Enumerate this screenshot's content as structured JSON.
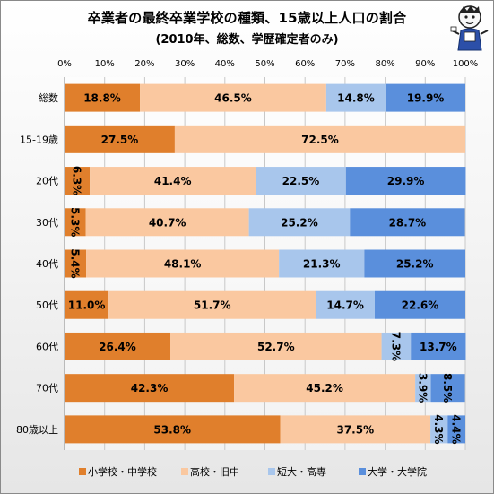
{
  "chart_data": {
    "type": "bar",
    "orientation": "horizontal",
    "stacked": "percent",
    "title": "卒業者の最終卒業学校の種類、15歳以上人口の割合",
    "subtitle": "(2010年、総数、学歴確定者のみ)",
    "categories": [
      "総数",
      "15-19歳",
      "20代",
      "30代",
      "40代",
      "50代",
      "60代",
      "70代",
      "80歳以上"
    ],
    "x_ticks": [
      "0%",
      "10%",
      "20%",
      "30%",
      "40%",
      "50%",
      "60%",
      "70%",
      "80%",
      "90%",
      "100%"
    ],
    "xlim": [
      0,
      100
    ],
    "grid": true,
    "legend_position": "bottom",
    "series": [
      {
        "name": "小学校・中学校",
        "color": "#E07F2C",
        "values": [
          18.8,
          27.5,
          6.3,
          5.3,
          5.4,
          11.0,
          26.4,
          42.3,
          53.8
        ],
        "labels": [
          "18.8%",
          "27.5%",
          "6.3%",
          "5.3%",
          "5.4%",
          "11.0%",
          "26.4%",
          "42.3%",
          "53.8%"
        ]
      },
      {
        "name": "高校・旧中",
        "color": "#FAC8A0",
        "values": [
          46.5,
          72.5,
          41.4,
          40.7,
          48.1,
          51.7,
          52.7,
          45.2,
          37.5
        ],
        "labels": [
          "46.5%",
          "72.5%",
          "41.4%",
          "40.7%",
          "48.1%",
          "51.7%",
          "52.7%",
          "45.2%",
          "37.5%"
        ]
      },
      {
        "name": "短大・高専",
        "color": "#A8C6EC",
        "values": [
          14.8,
          0,
          22.5,
          25.2,
          21.3,
          14.7,
          7.3,
          3.9,
          4.3
        ],
        "labels": [
          "14.8%",
          "",
          "22.5%",
          "25.2%",
          "21.3%",
          "14.7%",
          "7.3%",
          "3.9%",
          "4.3%"
        ]
      },
      {
        "name": "大学・大学院",
        "color": "#5A8FDC",
        "values": [
          19.9,
          0,
          29.9,
          28.7,
          25.2,
          22.6,
          13.7,
          8.5,
          4.4
        ],
        "labels": [
          "19.9%",
          "",
          "29.9%",
          "28.7%",
          "25.2%",
          "22.6%",
          "13.7%",
          "8.5%",
          "4.4%"
        ]
      }
    ]
  }
}
